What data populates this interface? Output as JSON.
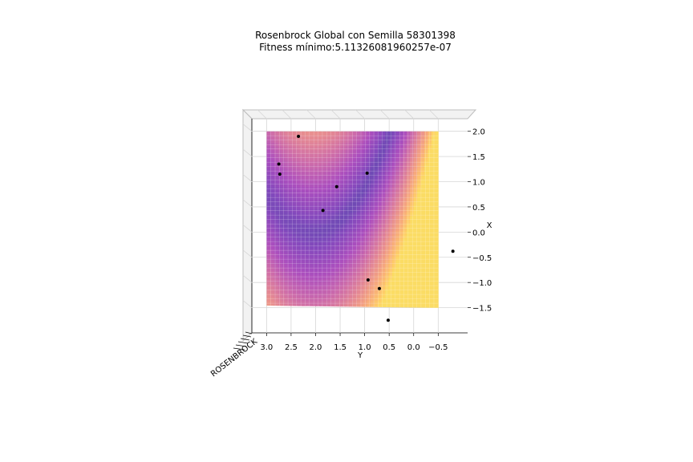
{
  "chart_data": {
    "type": "surface",
    "title_line1": "Rosenbrock Global con Semilla 58301398",
    "title_line2": "Fitness mínimo:5.11326081960257e-07",
    "xlabel": "Y",
    "ylabel": "X",
    "zlabel": "ROSENBROCK",
    "x_ticks": [
      "3.0",
      "2.5",
      "2.0",
      "1.5",
      "1.0",
      "0.5",
      "0.0",
      "−0.5"
    ],
    "y_ticks": [
      "2.0",
      "1.5",
      "1.0",
      "0.5",
      "0.0",
      "−0.5",
      "−1.0",
      "−1.5"
    ],
    "x_range": [
      -1.1,
      3.3
    ],
    "y_range": [
      -2.0,
      2.25
    ],
    "surface_x_range": [
      -0.5,
      3.0
    ],
    "surface_y_range": [
      -1.5,
      2.0
    ],
    "colormap": "plasma",
    "points": [
      {
        "y": 2.35,
        "x": 1.9
      },
      {
        "y": 2.75,
        "x": 1.35
      },
      {
        "y": 2.73,
        "x": 1.15
      },
      {
        "y": 0.95,
        "x": 1.17
      },
      {
        "y": 1.57,
        "x": 0.9
      },
      {
        "y": 1.85,
        "x": 0.43
      },
      {
        "y": -0.8,
        "x": -0.38
      },
      {
        "y": 0.93,
        "x": -0.95
      },
      {
        "y": 0.7,
        "x": -1.12
      },
      {
        "y": 0.52,
        "x": -1.75
      }
    ],
    "grid": true
  }
}
